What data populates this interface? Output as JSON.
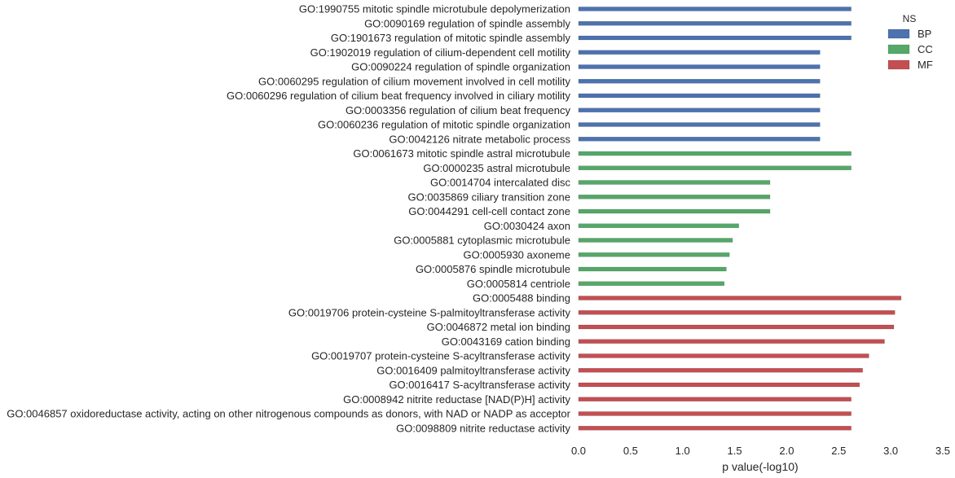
{
  "chart_data": {
    "type": "bar",
    "orientation": "horizontal",
    "xlabel": "p value(-log10)",
    "xlim": [
      0,
      3.5
    ],
    "xticks": [
      "0.0",
      "0.5",
      "1.0",
      "1.5",
      "2.0",
      "2.5",
      "3.0",
      "3.5"
    ],
    "grid": false,
    "legend": {
      "title": "NS",
      "placement": "top-right",
      "entries": [
        {
          "name": "BP",
          "color": "#4c72b0"
        },
        {
          "name": "CC",
          "color": "#55a868"
        },
        {
          "name": "MF",
          "color": "#c44e52"
        }
      ]
    },
    "bars": [
      {
        "label": "GO:1990755 mitotic spindle microtubule depolymerization",
        "value": 2.62,
        "group": "BP"
      },
      {
        "label": "GO:0090169 regulation of spindle assembly",
        "value": 2.62,
        "group": "BP"
      },
      {
        "label": "GO:1901673 regulation of mitotic spindle assembly",
        "value": 2.62,
        "group": "BP"
      },
      {
        "label": "GO:1902019 regulation of cilium-dependent cell motility",
        "value": 2.32,
        "group": "BP"
      },
      {
        "label": "GO:0090224 regulation of spindle organization",
        "value": 2.32,
        "group": "BP"
      },
      {
        "label": "GO:0060295 regulation of cilium movement involved in cell motility",
        "value": 2.32,
        "group": "BP"
      },
      {
        "label": "GO:0060296 regulation of cilium beat frequency involved in ciliary motility",
        "value": 2.32,
        "group": "BP"
      },
      {
        "label": "GO:0003356 regulation of cilium beat frequency",
        "value": 2.32,
        "group": "BP"
      },
      {
        "label": "GO:0060236 regulation of mitotic spindle organization",
        "value": 2.32,
        "group": "BP"
      },
      {
        "label": "GO:0042126 nitrate metabolic process",
        "value": 2.32,
        "group": "BP"
      },
      {
        "label": "GO:0061673 mitotic spindle astral microtubule",
        "value": 2.62,
        "group": "CC"
      },
      {
        "label": "GO:0000235 astral microtubule",
        "value": 2.62,
        "group": "CC"
      },
      {
        "label": "GO:0014704 intercalated disc",
        "value": 1.84,
        "group": "CC"
      },
      {
        "label": "GO:0035869 ciliary transition zone",
        "value": 1.84,
        "group": "CC"
      },
      {
        "label": "GO:0044291 cell-cell contact zone",
        "value": 1.84,
        "group": "CC"
      },
      {
        "label": "GO:0030424 axon",
        "value": 1.54,
        "group": "CC"
      },
      {
        "label": "GO:0005881 cytoplasmic microtubule",
        "value": 1.48,
        "group": "CC"
      },
      {
        "label": "GO:0005930 axoneme",
        "value": 1.45,
        "group": "CC"
      },
      {
        "label": "GO:0005876 spindle microtubule",
        "value": 1.42,
        "group": "CC"
      },
      {
        "label": "GO:0005814 centriole",
        "value": 1.4,
        "group": "CC"
      },
      {
        "label": "GO:0005488 binding",
        "value": 3.1,
        "group": "MF"
      },
      {
        "label": "GO:0019706 protein-cysteine S-palmitoyltransferase activity",
        "value": 3.04,
        "group": "MF"
      },
      {
        "label": "GO:0046872 metal ion binding",
        "value": 3.03,
        "group": "MF"
      },
      {
        "label": "GO:0043169 cation binding",
        "value": 2.94,
        "group": "MF"
      },
      {
        "label": "GO:0019707 protein-cysteine S-acyltransferase activity",
        "value": 2.79,
        "group": "MF"
      },
      {
        "label": "GO:0016409 palmitoyltransferase activity",
        "value": 2.73,
        "group": "MF"
      },
      {
        "label": "GO:0016417 S-acyltransferase activity",
        "value": 2.7,
        "group": "MF"
      },
      {
        "label": "GO:0008942 nitrite reductase [NAD(P)H] activity",
        "value": 2.62,
        "group": "MF"
      },
      {
        "label": "GO:0046857 oxidoreductase activity, acting on other nitrogenous compounds as donors, with NAD or NADP as acceptor",
        "value": 2.62,
        "group": "MF"
      },
      {
        "label": "GO:0098809 nitrite reductase activity",
        "value": 2.62,
        "group": "MF"
      }
    ]
  }
}
